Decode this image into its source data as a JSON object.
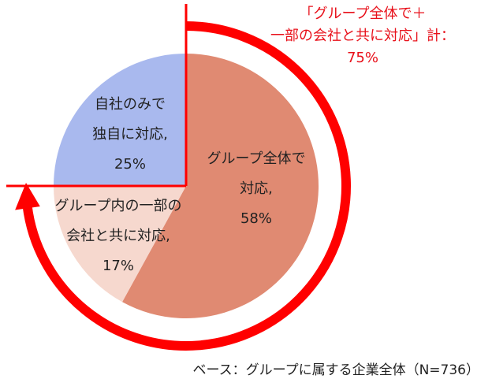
{
  "chart_data": {
    "type": "pie",
    "categories": [
      [
        "グループ全体で",
        "対応,"
      ],
      [
        "グループ内の一部の",
        "会社と共に対応,"
      ],
      [
        "自社のみで",
        "独自に対応,"
      ]
    ],
    "values": [
      58,
      17,
      25
    ],
    "value_labels": [
      "58%",
      "17%",
      "25%"
    ],
    "colors": [
      "#e08a72",
      "#f6d8ce",
      "#a9b9ee"
    ],
    "annotation": {
      "lines": [
        "「グループ全体で＋",
        "一部の会社と共に対応」計："
      ],
      "value": 75,
      "value_label": "75%",
      "color": "#ff0000"
    },
    "note": "ベース：グループに属する企業全体（N=736）"
  }
}
